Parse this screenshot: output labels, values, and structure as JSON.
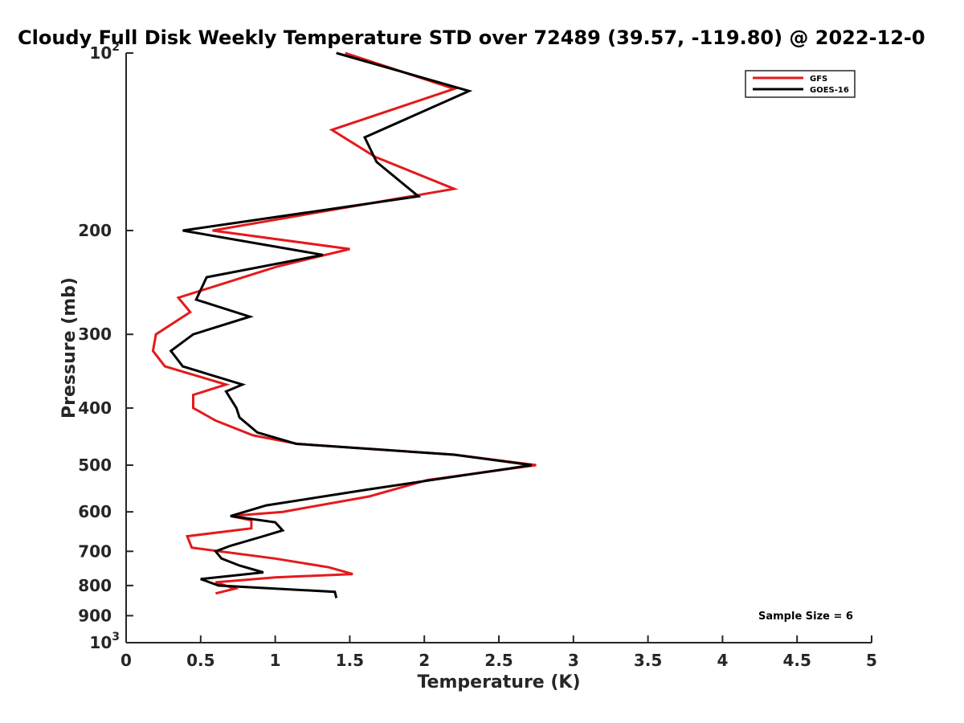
{
  "chart_data": {
    "type": "line",
    "title": "Cloudy Full Disk Weekly Temperature STD over 72489 (39.57, -119.80) @ 2022-12-0",
    "xlabel": "Temperature (K)",
    "ylabel": "Pressure (mb)",
    "xlim": [
      0,
      5
    ],
    "ylim": [
      1000,
      100
    ],
    "yscale": "log",
    "y_reversed": true,
    "grid": false,
    "legend_position": "top-right",
    "x_ticks": [
      "0",
      "0.5",
      "1",
      "1.5",
      "2",
      "2.5",
      "3",
      "3.5",
      "4",
      "4.5",
      "5"
    ],
    "y_ticks": [
      {
        "value": 100,
        "base": "10",
        "exp": "2"
      },
      {
        "value": 200,
        "label": "200"
      },
      {
        "value": 300,
        "label": "300"
      },
      {
        "value": 400,
        "label": "400"
      },
      {
        "value": 500,
        "label": "500"
      },
      {
        "value": 600,
        "label": "600"
      },
      {
        "value": 700,
        "label": "700"
      },
      {
        "value": 800,
        "label": "800"
      },
      {
        "value": 900,
        "label": "900"
      },
      {
        "value": 1000,
        "base": "10",
        "exp": "3"
      }
    ],
    "annotation": "Sample Size = 6",
    "series": [
      {
        "name": "GFS",
        "color": "#e41a1c",
        "points": [
          [
            1.47,
            100
          ],
          [
            2.2,
            115
          ],
          [
            1.38,
            135
          ],
          [
            1.67,
            150
          ],
          [
            2.2,
            170
          ],
          [
            0.58,
            200
          ],
          [
            1.5,
            215
          ],
          [
            1.02,
            230
          ],
          [
            0.35,
            260
          ],
          [
            0.43,
            275
          ],
          [
            0.2,
            300
          ],
          [
            0.18,
            320
          ],
          [
            0.26,
            340
          ],
          [
            0.67,
            365
          ],
          [
            0.45,
            380
          ],
          [
            0.45,
            400
          ],
          [
            0.6,
            420
          ],
          [
            0.85,
            445
          ],
          [
            1.15,
            460
          ],
          [
            2.2,
            480
          ],
          [
            2.75,
            500
          ],
          [
            2.02,
            530
          ],
          [
            1.63,
            565
          ],
          [
            1.05,
            600
          ],
          [
            0.7,
            610
          ],
          [
            0.84,
            620
          ],
          [
            0.84,
            640
          ],
          [
            0.41,
            660
          ],
          [
            0.44,
            690
          ],
          [
            1.0,
            720
          ],
          [
            1.36,
            745
          ],
          [
            1.52,
            765
          ],
          [
            1.0,
            775
          ],
          [
            0.6,
            790
          ],
          [
            0.73,
            810
          ],
          [
            0.6,
            825
          ]
        ]
      },
      {
        "name": "GOES-16",
        "color": "#000000",
        "points": [
          [
            1.41,
            100
          ],
          [
            2.3,
            116
          ],
          [
            1.6,
            139
          ],
          [
            1.68,
            153
          ],
          [
            1.96,
            175
          ],
          [
            0.38,
            200
          ],
          [
            1.32,
            220
          ],
          [
            0.54,
            240
          ],
          [
            0.47,
            262
          ],
          [
            0.83,
            280
          ],
          [
            0.45,
            300
          ],
          [
            0.3,
            320
          ],
          [
            0.38,
            340
          ],
          [
            0.78,
            365
          ],
          [
            0.67,
            375
          ],
          [
            0.74,
            400
          ],
          [
            0.76,
            415
          ],
          [
            0.88,
            440
          ],
          [
            1.14,
            460
          ],
          [
            2.2,
            480
          ],
          [
            2.72,
            500
          ],
          [
            1.62,
            550
          ],
          [
            0.94,
            585
          ],
          [
            0.7,
            610
          ],
          [
            1.0,
            625
          ],
          [
            1.05,
            645
          ],
          [
            0.92,
            660
          ],
          [
            0.7,
            685
          ],
          [
            0.6,
            700
          ],
          [
            0.64,
            720
          ],
          [
            0.76,
            740
          ],
          [
            0.92,
            760
          ],
          [
            0.5,
            780
          ],
          [
            0.62,
            800
          ],
          [
            1.4,
            820
          ],
          [
            1.41,
            840
          ]
        ]
      }
    ]
  }
}
